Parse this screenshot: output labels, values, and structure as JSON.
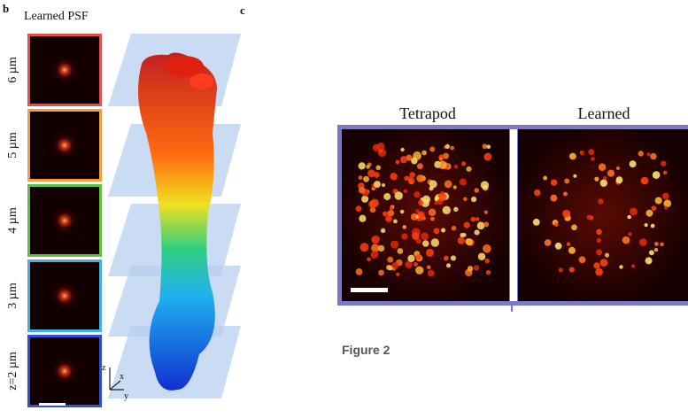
{
  "panel_b": {
    "label": "b",
    "title": "Learned PSF",
    "depths": [
      "6 µm",
      "5 µm",
      "4 µm",
      "3 µm",
      "z=2 µm"
    ]
  },
  "panel_c": {
    "label": "c",
    "axes": [
      "z",
      "x",
      "y"
    ]
  },
  "comparison": {
    "titles": [
      "Tetrapod",
      "Learned"
    ]
  },
  "caption": "Figure 2"
}
